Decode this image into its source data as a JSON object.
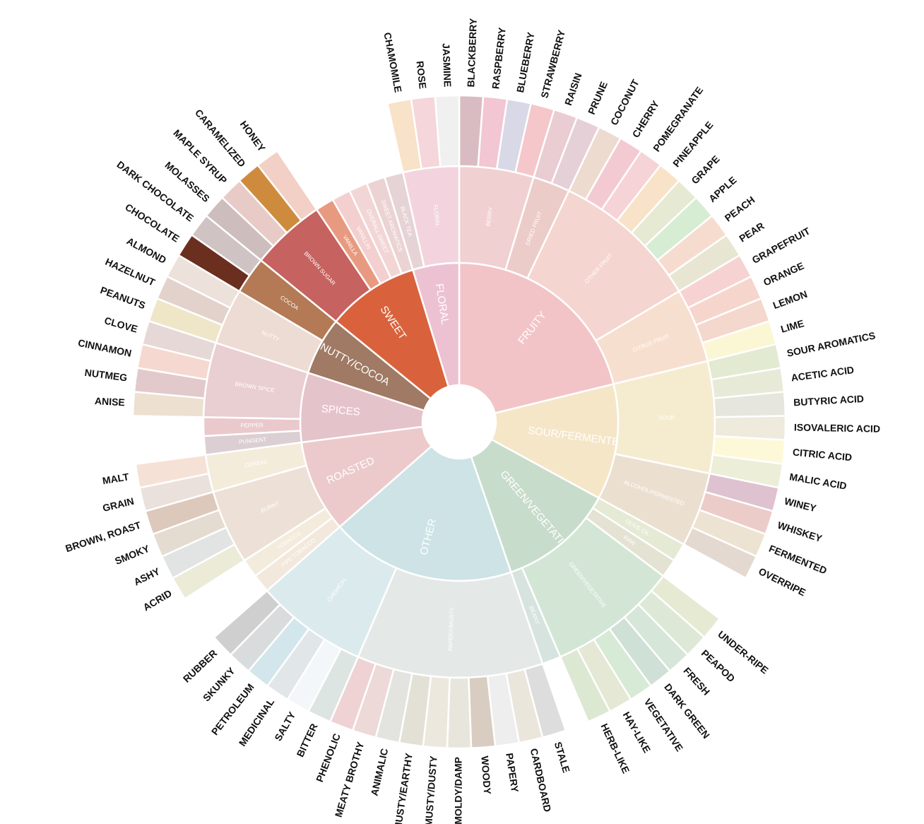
{
  "chart_data": {
    "type": "sunburst",
    "children": [
      {
        "name": "FRUITY",
        "color": "#f2c4c8",
        "children": [
          {
            "name": "BERRY",
            "color": "#f0d0d0",
            "children": [
              {
                "name": "BLACKBERRY",
                "color": "#d9bcc2"
              },
              {
                "name": "RASPBERRY",
                "color": "#f2c6d2"
              },
              {
                "name": "BLUEBERRY",
                "color": "#d8d8e6"
              },
              {
                "name": "STRAWBERRY",
                "color": "#f5c6ca"
              }
            ]
          },
          {
            "name": "DRIED FRUIT",
            "color": "#ecccc9",
            "children": [
              {
                "name": "RAISIN",
                "color": "#e9cdd2"
              },
              {
                "name": "PRUNE",
                "color": "#e6d0d8"
              }
            ]
          },
          {
            "name": "OTHER FRUIT",
            "color": "#f5d5d0",
            "children": [
              {
                "name": "COCONUT",
                "color": "#eddbd0"
              },
              {
                "name": "CHERRY",
                "color": "#f3cad2"
              },
              {
                "name": "POMEGRANATE",
                "color": "#f5d3d6"
              },
              {
                "name": "PINEAPPLE",
                "color": "#f8e3c8"
              },
              {
                "name": "GRAPE",
                "color": "#e6ead2"
              },
              {
                "name": "APPLE",
                "color": "#d6ecd3"
              },
              {
                "name": "PEACH",
                "color": "#f6dccf"
              },
              {
                "name": "PEAR",
                "color": "#e8e6d2"
              }
            ]
          },
          {
            "name": "CITRUS FRUIT",
            "color": "#f7dfd0",
            "children": [
              {
                "name": "GRAPEFRUIT",
                "color": "#f6d3d2"
              },
              {
                "name": "ORANGE",
                "color": "#f6d6cc"
              },
              {
                "name": "LEMON",
                "color": "#f4d8cd"
              },
              {
                "name": "LIME",
                "color": "#fbf6d4"
              }
            ]
          }
        ]
      },
      {
        "name": "SOUR/FERMENTED",
        "color": "#f5e6c8",
        "children": [
          {
            "name": "SOUR",
            "color": "#f5ecd0",
            "children": [
              {
                "name": "SOUR AROMATICS",
                "color": "#e2ead2"
              },
              {
                "name": "ACETIC ACID",
                "color": "#e8ead8"
              },
              {
                "name": "BUTYRIC ACID",
                "color": "#e6e6de"
              },
              {
                "name": "ISOVALERIC ACID",
                "color": "#eeeadc"
              },
              {
                "name": "CITRIC ACID",
                "color": "#fdf9d8"
              },
              {
                "name": "MALIC ACID",
                "color": "#eceed8"
              }
            ]
          },
          {
            "name": "ALCOHOL/FERMENTED",
            "color": "#ebe0d0",
            "children": [
              {
                "name": "WINEY",
                "color": "#dec2d0"
              },
              {
                "name": "WHISKEY",
                "color": "#ecccc9"
              },
              {
                "name": "FERMENTED",
                "color": "#ede3d2"
              },
              {
                "name": "OVERRIPE",
                "color": "#e3d9d0"
              }
            ]
          }
        ]
      },
      {
        "name": "GREEN/VEGETATIVE",
        "color": "#c8dccb",
        "children": [
          {
            "name": "OLIVE OIL",
            "color": "#e5ead5"
          },
          {
            "name": "RAW",
            "color": "#e4e2d2"
          },
          {
            "name": "GREEN/VEGETATIVE",
            "color": "#d3e6d5",
            "children": [
              {
                "name": "UNDER-RIPE",
                "color": "#e6ead3"
              },
              {
                "name": "PEAPOD",
                "color": "#dde9d6"
              },
              {
                "name": "FRESH",
                "color": "#d6e6d8"
              },
              {
                "name": "DARK GREEN",
                "color": "#cfe0d6"
              },
              {
                "name": "VEGETATIVE",
                "color": "#d6ead6"
              },
              {
                "name": "HAY-LIKE",
                "color": "#e4e8d4"
              },
              {
                "name": "HERB-LIKE",
                "color": "#dde8d3"
              }
            ]
          },
          {
            "name": "BEANY",
            "color": "#d6e3de"
          }
        ]
      },
      {
        "name": "OTHER",
        "color": "#cde3e6",
        "children": [
          {
            "name": "PAPERY/MUSTY",
            "color": "#e4e9e8",
            "children": [
              {
                "name": "STALE",
                "color": "#dddddd"
              },
              {
                "name": "CARDBOARD",
                "color": "#ebe6dc"
              },
              {
                "name": "PAPERY",
                "color": "#eeeeee"
              },
              {
                "name": "WOODY",
                "color": "#d8cdc0"
              },
              {
                "name": "MOLDY/DAMP",
                "color": "#e8e5dc"
              },
              {
                "name": "MUSTY/DUSTY",
                "color": "#ece8de"
              },
              {
                "name": "MUSTY/EARTHY",
                "color": "#e3e1d6"
              },
              {
                "name": "ANIMALIC",
                "color": "#e3e3df"
              },
              {
                "name": "MEATY BROTHY",
                "color": "#edd9d8"
              },
              {
                "name": "PHENOLIC",
                "color": "#efd2d4"
              }
            ]
          },
          {
            "name": "CHEMICAL",
            "color": "#dbeaed",
            "children": [
              {
                "name": "BITTER",
                "color": "#dde5e3"
              },
              {
                "name": "SALTY",
                "color": "#f3f7f9"
              },
              {
                "name": "MEDICINAL",
                "color": "#e1e6e8"
              },
              {
                "name": "PETROLEUM",
                "color": "#d2e6ec"
              },
              {
                "name": "SKUNKY",
                "color": "#d9dcdc"
              },
              {
                "name": "RUBBER",
                "color": "#cfcfcf"
              }
            ]
          }
        ]
      },
      {
        "name": "ROASTED",
        "color": "#eccacb",
        "children": [
          {
            "name": "PIPE TOBACCO",
            "color": "#f2e8dc"
          },
          {
            "name": "TOBACCO",
            "color": "#f3ebdc"
          },
          {
            "name": "BURNT",
            "color": "#ede0d7",
            "children": [
              {
                "name": "ACRID",
                "color": "#ecebd8"
              },
              {
                "name": "ASHY",
                "color": "#e2e3e3"
              },
              {
                "name": "SMOKY",
                "color": "#e4dcd0"
              },
              {
                "name": "BROWN, ROAST",
                "color": "#dcc9bc"
              }
            ]
          },
          {
            "name": "CEREAL",
            "color": "#f4ecdb",
            "children": [
              {
                "name": "GRAIN",
                "color": "#ebe1dc"
              },
              {
                "name": "MALT",
                "color": "#f6e1d6"
              }
            ]
          }
        ]
      },
      {
        "name": "SPICES",
        "color": "#e5c3cb",
        "children": [
          {
            "name": "PUNGENT",
            "color": "#dccfd3"
          },
          {
            "name": "PEPPER",
            "color": "#eac9cc"
          },
          {
            "name": "BROWN SPICE",
            "color": "#e9ced2",
            "children": [
              {
                "name": "ANISE",
                "color": "#ede0d0"
              },
              {
                "name": "NUTMEG",
                "color": "#e2c9cc"
              },
              {
                "name": "CINNAMON",
                "color": "#f5d8cf"
              },
              {
                "name": "CLOVE",
                "color": "#e6d8d6"
              }
            ]
          }
        ]
      },
      {
        "name": "NUTTY/COCOA",
        "color": "#a07a64",
        "children": [
          {
            "name": "NUTTY",
            "color": "#eddcd3",
            "children": [
              {
                "name": "PEANUTS",
                "color": "#efe6c8"
              },
              {
                "name": "HAZELNUT",
                "color": "#e3d2cc"
              },
              {
                "name": "ALMOND",
                "color": "#ede1dc"
              }
            ]
          },
          {
            "name": "COCOA",
            "color": "#b37a55",
            "children": [
              {
                "name": "CHOCOLATE",
                "color": "#6b2f1f"
              },
              {
                "name": "DARK CHOCOLATE",
                "color": "#cfc3c4"
              }
            ]
          }
        ]
      },
      {
        "name": "SWEET",
        "color": "#d9623c",
        "children": [
          {
            "name": "BROWN SUGAR",
            "color": "#c6625f",
            "children": [
              {
                "name": "MOLASSES",
                "color": "#cdbdbd"
              },
              {
                "name": "MAPLE SYRUP",
                "color": "#e8cbc7"
              },
              {
                "name": "CARAMELIZED",
                "color": "#cf8b3d"
              },
              {
                "name": "HONEY",
                "color": "#f2d0c5"
              }
            ]
          },
          {
            "name": "VANILLA",
            "color": "#e89a80"
          },
          {
            "name": "VANILLIN",
            "color": "#f3cfcf"
          },
          {
            "name": "OVERALL SWEET",
            "color": "#f2d6d6"
          },
          {
            "name": "SWEET AROMATICS",
            "color": "#ecd3d3"
          }
        ]
      },
      {
        "name": "FLORAL",
        "color": "#ecc2d2",
        "children": [
          {
            "name": "BLACK TEA",
            "color": "#e6d3d6"
          },
          {
            "name": "FLORAL",
            "color": "#f3d4de",
            "children": [
              {
                "name": "CHAMOMILE",
                "color": "#f8e2c8"
              },
              {
                "name": "ROSE",
                "color": "#f5d6da"
              },
              {
                "name": "JASMINE",
                "color": "#f0f0f0"
              }
            ]
          }
        ]
      }
    ]
  }
}
